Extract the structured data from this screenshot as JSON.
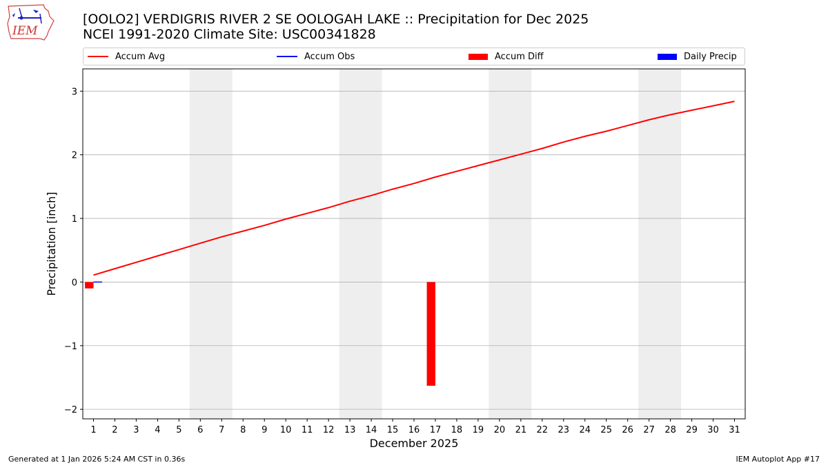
{
  "header": {
    "logo_text": "IEM",
    "title_line1": "[OOLO2] VERDIGRIS RIVER 2 SE OOLOGAH LAKE :: Precipitation for Dec 2025",
    "title_line2": "NCEI 1991-2020 Climate Site: USC00341828"
  },
  "footer": {
    "left": "Generated at 1 Jan 2026 5:24 AM CST in 0.36s",
    "right": "IEM Autoplot App #17"
  },
  "colors": {
    "accum_avg": "#ff0000",
    "accum_obs": "#0000ff",
    "accum_diff": "#ff0000",
    "daily_precip": "#0000ff",
    "weekend_shade": "#eeeeee",
    "grid": "#b0b0b0"
  },
  "chart_data": {
    "type": "line",
    "title": "[OOLO2] VERDIGRIS RIVER 2 SE OOLOGAH LAKE :: Precipitation for Dec 2025",
    "subtitle": "NCEI 1991-2020 Climate Site: USC00341828",
    "xlabel": "December 2025",
    "ylabel": "Precipitation [inch]",
    "ylim": [
      -2.15,
      3.35
    ],
    "xlim": [
      0.5,
      31.5
    ],
    "yticks": [
      -2,
      -1,
      0,
      1,
      2,
      3
    ],
    "ytick_labels": [
      "−2",
      "−1",
      "0",
      "1",
      "2",
      "3"
    ],
    "x": [
      1,
      2,
      3,
      4,
      5,
      6,
      7,
      8,
      9,
      10,
      11,
      12,
      13,
      14,
      15,
      16,
      17,
      18,
      19,
      20,
      21,
      22,
      23,
      24,
      25,
      26,
      27,
      28,
      29,
      30,
      31
    ],
    "xtick_labels": [
      "1",
      "2",
      "3",
      "4",
      "5",
      "6",
      "7",
      "8",
      "9",
      "10",
      "11",
      "12",
      "13",
      "14",
      "15",
      "16",
      "17",
      "18",
      "19",
      "20",
      "21",
      "22",
      "23",
      "24",
      "25",
      "26",
      "27",
      "28",
      "29",
      "30",
      "31"
    ],
    "grid": "horizontal",
    "legend_placement": "top",
    "shaded_days": [
      [
        6,
        7
      ],
      [
        13,
        14
      ],
      [
        20,
        21
      ],
      [
        27,
        28
      ]
    ],
    "series": [
      {
        "name": "Accum Avg",
        "kind": "line",
        "x": [
          1,
          2,
          3,
          4,
          5,
          6,
          7,
          8,
          9,
          10,
          11,
          12,
          13,
          14,
          15,
          16,
          17,
          18,
          19,
          20,
          21,
          22,
          23,
          24,
          25,
          26,
          27,
          28,
          29,
          30,
          31
        ],
        "values": [
          0.11,
          0.21,
          0.31,
          0.41,
          0.51,
          0.61,
          0.71,
          0.8,
          0.89,
          0.99,
          1.08,
          1.17,
          1.27,
          1.36,
          1.46,
          1.55,
          1.65,
          1.74,
          1.83,
          1.92,
          2.01,
          2.1,
          2.2,
          2.29,
          2.37,
          2.46,
          2.55,
          2.63,
          2.7,
          2.77,
          2.84
        ]
      },
      {
        "name": "Accum Obs",
        "kind": "line",
        "x": [
          1
        ],
        "values": [
          0.0
        ]
      },
      {
        "name": "Accum Diff",
        "kind": "bar",
        "x": [
          1,
          17
        ],
        "values": [
          -0.1,
          -1.63
        ]
      },
      {
        "name": "Daily Precip",
        "kind": "bar",
        "x": [
          1
        ],
        "values": [
          0.0
        ]
      }
    ]
  }
}
